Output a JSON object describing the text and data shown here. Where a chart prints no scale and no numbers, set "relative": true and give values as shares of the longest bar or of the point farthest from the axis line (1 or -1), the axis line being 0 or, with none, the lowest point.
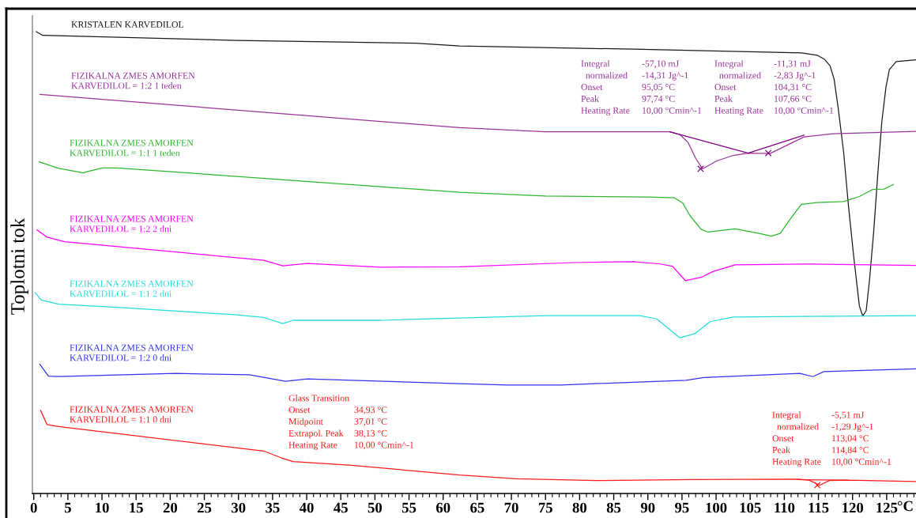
{
  "chart_data": {
    "type": "line",
    "relative": true,
    "ylabel": "Toplotni tok",
    "xlabel": "°C",
    "xlim": [
      -0.2,
      129.3
    ],
    "xticks": [
      0,
      5,
      10,
      15,
      20,
      25,
      30,
      35,
      40,
      45,
      50,
      55,
      60,
      65,
      70,
      75,
      80,
      85,
      90,
      95,
      100,
      105,
      110,
      115,
      120,
      125,
      {
        "value": 1,
        "label": null
      },
      {
        "value": 2,
        "label": null
      },
      {
        "value": 3,
        "label": null
      },
      {
        "value": 4,
        "label": null
      },
      {
        "value": 6,
        "label": null
      },
      {
        "value": 7,
        "label": null
      },
      {
        "value": 8,
        "label": null
      },
      {
        "value": 9,
        "label": null
      },
      {
        "value": 11,
        "label": null
      },
      {
        "value": 12,
        "label": null
      },
      {
        "value": 13,
        "label": null
      },
      {
        "value": 14,
        "label": null
      },
      {
        "value": 16,
        "label": null
      },
      {
        "value": 17,
        "label": null
      },
      {
        "value": 18,
        "label": null
      },
      {
        "value": 19,
        "label": null
      },
      {
        "value": 21,
        "label": null
      },
      {
        "value": 22,
        "label": null
      },
      {
        "value": 23,
        "label": null
      },
      {
        "value": 24,
        "label": null
      },
      {
        "value": 26,
        "label": null
      },
      {
        "value": 27,
        "label": null
      },
      {
        "value": 28,
        "label": null
      },
      {
        "value": 29,
        "label": null
      },
      {
        "value": 31,
        "label": null
      },
      {
        "value": 32,
        "label": null
      },
      {
        "value": 33,
        "label": null
      },
      {
        "value": 34,
        "label": null
      },
      {
        "value": 36,
        "label": null
      },
      {
        "value": 37,
        "label": null
      },
      {
        "value": 38,
        "label": null
      },
      {
        "value": 39,
        "label": null
      },
      {
        "value": 41,
        "label": null
      },
      {
        "value": 42,
        "label": null
      },
      {
        "value": 43,
        "label": null
      },
      {
        "value": 44,
        "label": null
      },
      {
        "value": 46,
        "label": null
      },
      {
        "value": 47,
        "label": null
      },
      {
        "value": 48,
        "label": null
      },
      {
        "value": 49,
        "label": null
      },
      {
        "value": 51,
        "label": null
      },
      {
        "value": 52,
        "label": null
      },
      {
        "value": 53,
        "label": null
      },
      {
        "value": 54,
        "label": null
      },
      {
        "value": 56,
        "label": null
      },
      {
        "value": 57,
        "label": null
      },
      {
        "value": 58,
        "label": null
      },
      {
        "value": 59,
        "label": null
      },
      {
        "value": 61,
        "label": null
      },
      {
        "value": 62,
        "label": null
      },
      {
        "value": 63,
        "label": null
      },
      {
        "value": 64,
        "label": null
      },
      {
        "value": 66,
        "label": null
      },
      {
        "value": 67,
        "label": null
      },
      {
        "value": 68,
        "label": null
      },
      {
        "value": 69,
        "label": null
      },
      {
        "value": 71,
        "label": null
      },
      {
        "value": 72,
        "label": null
      },
      {
        "value": 73,
        "label": null
      },
      {
        "value": 74,
        "label": null
      },
      {
        "value": 76,
        "label": null
      },
      {
        "value": 77,
        "label": null
      },
      {
        "value": 78,
        "label": null
      },
      {
        "value": 79,
        "label": null
      },
      {
        "value": 81,
        "label": null
      },
      {
        "value": 82,
        "label": null
      },
      {
        "value": 83,
        "label": null
      },
      {
        "value": 84,
        "label": null
      },
      {
        "value": 86,
        "label": null
      },
      {
        "value": 87,
        "label": null
      },
      {
        "value": 88,
        "label": null
      },
      {
        "value": 89,
        "label": null
      },
      {
        "value": 91,
        "label": null
      },
      {
        "value": 92,
        "label": null
      },
      {
        "value": 93,
        "label": null
      },
      {
        "value": 94,
        "label": null
      },
      {
        "value": 96,
        "label": null
      },
      {
        "value": 97,
        "label": null
      },
      {
        "value": 98,
        "label": null
      },
      {
        "value": 99,
        "label": null
      },
      {
        "value": 101,
        "label": null
      },
      {
        "value": 102,
        "label": null
      },
      {
        "value": 103,
        "label": null
      },
      {
        "value": 104,
        "label": null
      },
      {
        "value": 106,
        "label": null
      },
      {
        "value": 107,
        "label": null
      },
      {
        "value": 108,
        "label": null
      },
      {
        "value": 109,
        "label": null
      },
      {
        "value": 111,
        "label": null
      },
      {
        "value": 112,
        "label": null
      },
      {
        "value": 113,
        "label": null
      },
      {
        "value": 114,
        "label": null
      },
      {
        "value": 116,
        "label": null
      },
      {
        "value": 117,
        "label": null
      },
      {
        "value": 118,
        "label": null
      },
      {
        "value": 119,
        "label": null
      },
      {
        "value": 121,
        "label": null
      },
      {
        "value": 122,
        "label": null
      },
      {
        "value": 123,
        "label": null
      },
      {
        "value": 124,
        "label": null
      },
      {
        "value": 126,
        "label": null
      },
      {
        "value": 127,
        "label": null
      },
      {
        "value": 128,
        "label": null
      },
      {
        "value": 129,
        "label": null
      }
    ],
    "series": [
      {
        "name": "KRISTALEN KARVEDILOL",
        "color": "#1a1a1a",
        "x": [
          0.35,
          1.3,
          29.8,
          56.0,
          62.4,
          87.8,
          112.5,
          114.8,
          115.9,
          116.7,
          117.3,
          117.9,
          118.7,
          119.4,
          120.2,
          121.0,
          121.5,
          122.0,
          122.5,
          123.1,
          123.7,
          124.3,
          124.9,
          125.4,
          126.4,
          129.3
        ],
        "values": [
          1.0,
          0.992,
          0.981,
          0.975,
          0.969,
          0.962,
          0.954,
          0.949,
          0.94,
          0.926,
          0.897,
          0.834,
          0.738,
          0.623,
          0.509,
          0.406,
          0.384,
          0.396,
          0.464,
          0.567,
          0.692,
          0.806,
          0.88,
          0.918,
          0.935,
          0.939
        ]
      },
      {
        "name": "FIZIKALNA ZMES AMORFEN\nKARVEDILOL = 1:2 1 teden",
        "color": "#993399",
        "x": [
          0.9,
          62.4,
          75.0,
          90.1,
          93.2,
          94.7,
          95.9,
          97.0,
          98.0,
          100.1,
          102.5,
          104.7,
          107.9,
          110.1,
          112.9,
          117.1,
          129.3
        ],
        "values": [
          0.864,
          0.792,
          0.783,
          0.783,
          0.783,
          0.777,
          0.76,
          0.726,
          0.703,
          0.72,
          0.732,
          0.737,
          0.736,
          0.752,
          0.772,
          0.779,
          0.784
        ]
      },
      {
        "name": "FIZIKALNA ZMES AMORFEN\nKARVEDILOL = 1:1 1 teden",
        "color": "#2db82d",
        "x": [
          0.8,
          3.65,
          7.3,
          7.9,
          10.1,
          12.2,
          62.4,
          75.0,
          90.1,
          93.9,
          95.1,
          96.2,
          97.8,
          98.8,
          102.8,
          106.3,
          108.1,
          109.4,
          110.9,
          112.5,
          114.8,
          118.7,
          121.0,
          122.9,
          124.6,
          126.0
        ],
        "values": [
          0.718,
          0.704,
          0.694,
          0.697,
          0.705,
          0.705,
          0.652,
          0.644,
          0.642,
          0.64,
          0.629,
          0.601,
          0.572,
          0.566,
          0.573,
          0.563,
          0.557,
          0.563,
          0.595,
          0.626,
          0.63,
          0.632,
          0.643,
          0.658,
          0.659,
          0.669
        ]
      },
      {
        "name": "FIZIKALNA ZMES AMORFEN\nKARVEDILOL = 1:2 2 dni",
        "color": "#ff00ff",
        "x": [
          0.44,
          1.95,
          4.52,
          22.1,
          33.7,
          36.5,
          38.0,
          40.1,
          50.9,
          62.4,
          79.3,
          87.9,
          91.8,
          93.6,
          95.5,
          97.8,
          99.6,
          102.8,
          113.6,
          129.3
        ],
        "values": [
          0.571,
          0.555,
          0.545,
          0.521,
          0.505,
          0.493,
          0.495,
          0.498,
          0.49,
          0.491,
          0.5,
          0.502,
          0.497,
          0.492,
          0.461,
          0.468,
          0.481,
          0.495,
          0.497,
          0.494
        ]
      },
      {
        "name": "FIZIKALNA ZMES AMORFEN\nKARVEDILOL = 1:1 2 dni",
        "color": "#22dddd",
        "x": [
          0.22,
          1.09,
          3.65,
          12.2,
          29.4,
          33.7,
          36.5,
          38.0,
          50.9,
          62.4,
          75.0,
          88.8,
          91.3,
          93.1,
          94.7,
          96.9,
          99.1,
          102.5,
          129.3
        ],
        "values": [
          0.435,
          0.419,
          0.41,
          0.403,
          0.387,
          0.381,
          0.368,
          0.375,
          0.375,
          0.38,
          0.385,
          0.385,
          0.378,
          0.356,
          0.337,
          0.346,
          0.372,
          0.382,
          0.385
        ]
      },
      {
        "name": "FIZIKALNA ZMES AMORFEN\nKARVEDILOL = 1:2 0 dni",
        "color": "#3333ee",
        "x": [
          0.87,
          2.16,
          3.65,
          20.8,
          31.6,
          36.9,
          40.1,
          62.4,
          69.5,
          77.2,
          95.6,
          98.2,
          112.3,
          114.2,
          115.8,
          129.3
        ],
        "values": [
          0.28,
          0.254,
          0.253,
          0.26,
          0.257,
          0.243,
          0.248,
          0.238,
          0.235,
          0.235,
          0.245,
          0.251,
          0.26,
          0.253,
          0.264,
          0.27
        ]
      },
      {
        "name": "FIZIKALNA ZMES AMORFEN\nKARVEDILOL = 1:1 0 dni",
        "color": "#ff1a1a",
        "x": [
          1.0,
          1.95,
          3.65,
          33.7,
          36.3,
          38.0,
          46.6,
          62.4,
          70.7,
          82.3,
          96.5,
          111.9,
          113.6,
          115.2,
          116.6,
          119.4,
          129.3
        ],
        "values": [
          0.18,
          0.149,
          0.145,
          0.092,
          0.077,
          0.069,
          0.061,
          0.04,
          0.032,
          0.028,
          0.03,
          0.031,
          0.029,
          0.018,
          0.028,
          0.029,
          0.026
        ]
      },
      {
        "color": "#800080",
        "x": [
          93.2,
          104.7,
          112.9
        ],
        "values": [
          0.783,
          0.737,
          0.776
        ]
      },
      {
        "color": "#ff1a1a",
        "x": [
          112.0,
          119.3
        ],
        "values": [
          0.03,
          0.029
        ]
      },
      {
        "type": "scatter",
        "marker": "cross",
        "color": "#800080",
        "x": [
          97.74,
          107.66
        ],
        "values": [
          0.703,
          0.737
        ]
      },
      {
        "type": "scatter",
        "marker": "cross",
        "color": "#ff1a1a",
        "x": [
          114.84
        ],
        "values": [
          0.018
        ]
      }
    ],
    "annotations": [
      "Integral -57,10 mJ\n  normalized -14,31 Jg^-1\nOnset 95,05 °C\nPeak 97,74 °C\nHeating Rate 10,00 °Cmin^-1",
      "Integral -11,31 mJ\n  normalized -2,83 Jg^-1\nOnset 104,31 °C\nPeak 107,66 °C\nHeating Rate 10,00 °Cmin^-1",
      "Glass Transition\nOnset 34,93 °C\nMidpoint 37,01 °C\nExtrapol. Peak 38,13 °C\nHeating Rate 10,00 °Cmin^-1",
      "Integral -5,51 mJ\n  normalized -1,29 Jg^-1\nOnset 113,04 °C\nPeak 114,84 °C\nHeating Rate 10,00 °Cmin^-1"
    ]
  }
}
